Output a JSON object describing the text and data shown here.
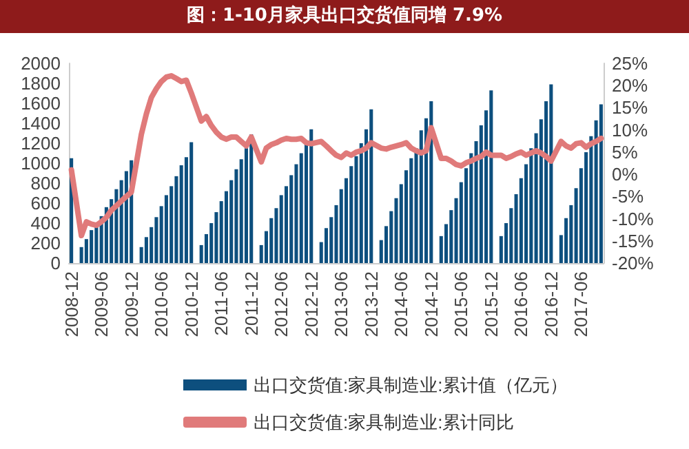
{
  "chart_data": {
    "type": "bar",
    "title": "图：1-10月家具出口交货值同增 7.9%",
    "categories": [
      "2008-12",
      null,
      null,
      null,
      null,
      null,
      "2009-06",
      null,
      null,
      null,
      null,
      null,
      "2009-12",
      null,
      null,
      null,
      null,
      null,
      "2010-06",
      null,
      null,
      null,
      null,
      null,
      "2010-12",
      null,
      null,
      null,
      null,
      null,
      "2011-06",
      null,
      null,
      null,
      null,
      null,
      "2011-12",
      null,
      null,
      null,
      null,
      null,
      "2012-06",
      null,
      null,
      null,
      null,
      null,
      "2012-12",
      null,
      null,
      null,
      null,
      null,
      "2013-06",
      null,
      null,
      null,
      null,
      null,
      "2013-12",
      null,
      null,
      null,
      null,
      null,
      "2014-06",
      null,
      null,
      null,
      null,
      null,
      "2014-12",
      null,
      null,
      null,
      null,
      null,
      "2015-06",
      null,
      null,
      null,
      null,
      null,
      "2015-12",
      null,
      null,
      null,
      null,
      null,
      "2016-06",
      null,
      null,
      null,
      null,
      null,
      "2016-12",
      null,
      null,
      null,
      null,
      null,
      "2017-06",
      null,
      null,
      null,
      null
    ],
    "series": [
      {
        "name": "出口交货值:家具制造业:累计值（亿元）",
        "color": "#0d4f7e",
        "values": [
          1050,
          null,
          160,
          240,
          330,
          380,
          470,
          560,
          640,
          740,
          830,
          920,
          1030,
          null,
          160,
          260,
          360,
          460,
          570,
          680,
          770,
          870,
          980,
          1060,
          1210,
          null,
          180,
          290,
          400,
          510,
          620,
          720,
          830,
          940,
          1040,
          1150,
          1290,
          null,
          180,
          320,
          450,
          550,
          680,
          770,
          880,
          990,
          1100,
          1200,
          1340,
          null,
          210,
          350,
          460,
          580,
          740,
          850,
          970,
          1070,
          1200,
          1340,
          1540,
          null,
          230,
          370,
          520,
          650,
          790,
          930,
          1050,
          1150,
          1330,
          1450,
          1620,
          null,
          270,
          390,
          530,
          650,
          810,
          950,
          1100,
          1220,
          1380,
          1530,
          1730,
          null,
          270,
          400,
          550,
          690,
          850,
          990,
          1150,
          1300,
          1440,
          1620,
          1790,
          null,
          280,
          450,
          580,
          750,
          950,
          1110,
          1270,
          1430,
          1590
        ]
      },
      {
        "name": "出口交货值:家具制造业:累计同比",
        "type": "line",
        "axis": "y2",
        "color": "#e07a7a",
        "values": [
          1,
          null,
          -13.8,
          -10.7,
          -11.2,
          -11.5,
          -10.7,
          -9.7,
          -8.1,
          -7.1,
          -6,
          -5,
          -4,
          null,
          9,
          13.6,
          17.3,
          19.3,
          20.9,
          21.9,
          22.2,
          21.6,
          20.9,
          21.2,
          18.3,
          null,
          12,
          13,
          11,
          9.5,
          8.4,
          7.9,
          8.4,
          8.4,
          7.4,
          6.4,
          8.4,
          null,
          2.8,
          5.9,
          6.7,
          7.1,
          7.7,
          8.1,
          7.9,
          7.9,
          8.1,
          7.1,
          6.9,
          null,
          7.4,
          6.4,
          5.3,
          4.3,
          3.8,
          4.8,
          4.3,
          5,
          5.3,
          5.9,
          7.1,
          null,
          5.9,
          5.7,
          6.1,
          6.4,
          6.7,
          7.1,
          5.9,
          5.3,
          4.8,
          5.3,
          10.5,
          null,
          3.6,
          3.6,
          3,
          2.2,
          1.9,
          2.6,
          3,
          3.6,
          4,
          5,
          4.3,
          null,
          4.3,
          3.6,
          4,
          4.6,
          5,
          4.3,
          4.8,
          5.3,
          4.8,
          4,
          3,
          null,
          7.4,
          6.4,
          5.9,
          6.9,
          7.1,
          6.1,
          6.9,
          7.4,
          8.1
        ]
      }
    ],
    "ylim": [
      0,
      2000
    ],
    "yticks": [
      0,
      200,
      400,
      600,
      800,
      1000,
      1200,
      1400,
      1600,
      1800,
      2000
    ],
    "y2lim": [
      -20,
      25
    ],
    "y2ticks": [
      {
        "value": -20,
        "label": "-20%"
      },
      {
        "value": -15,
        "label": "-15%"
      },
      {
        "value": -10,
        "label": "-10%"
      },
      {
        "value": -5,
        "label": "-5%"
      },
      {
        "value": 0,
        "label": "0%"
      },
      {
        "value": 5,
        "label": "5%"
      },
      {
        "value": 10,
        "label": "10%"
      },
      {
        "value": 15,
        "label": "15%"
      },
      {
        "value": 20,
        "label": "20%"
      },
      {
        "value": 25,
        "label": "25%"
      }
    ],
    "legend": "bottom",
    "marker": "none"
  }
}
